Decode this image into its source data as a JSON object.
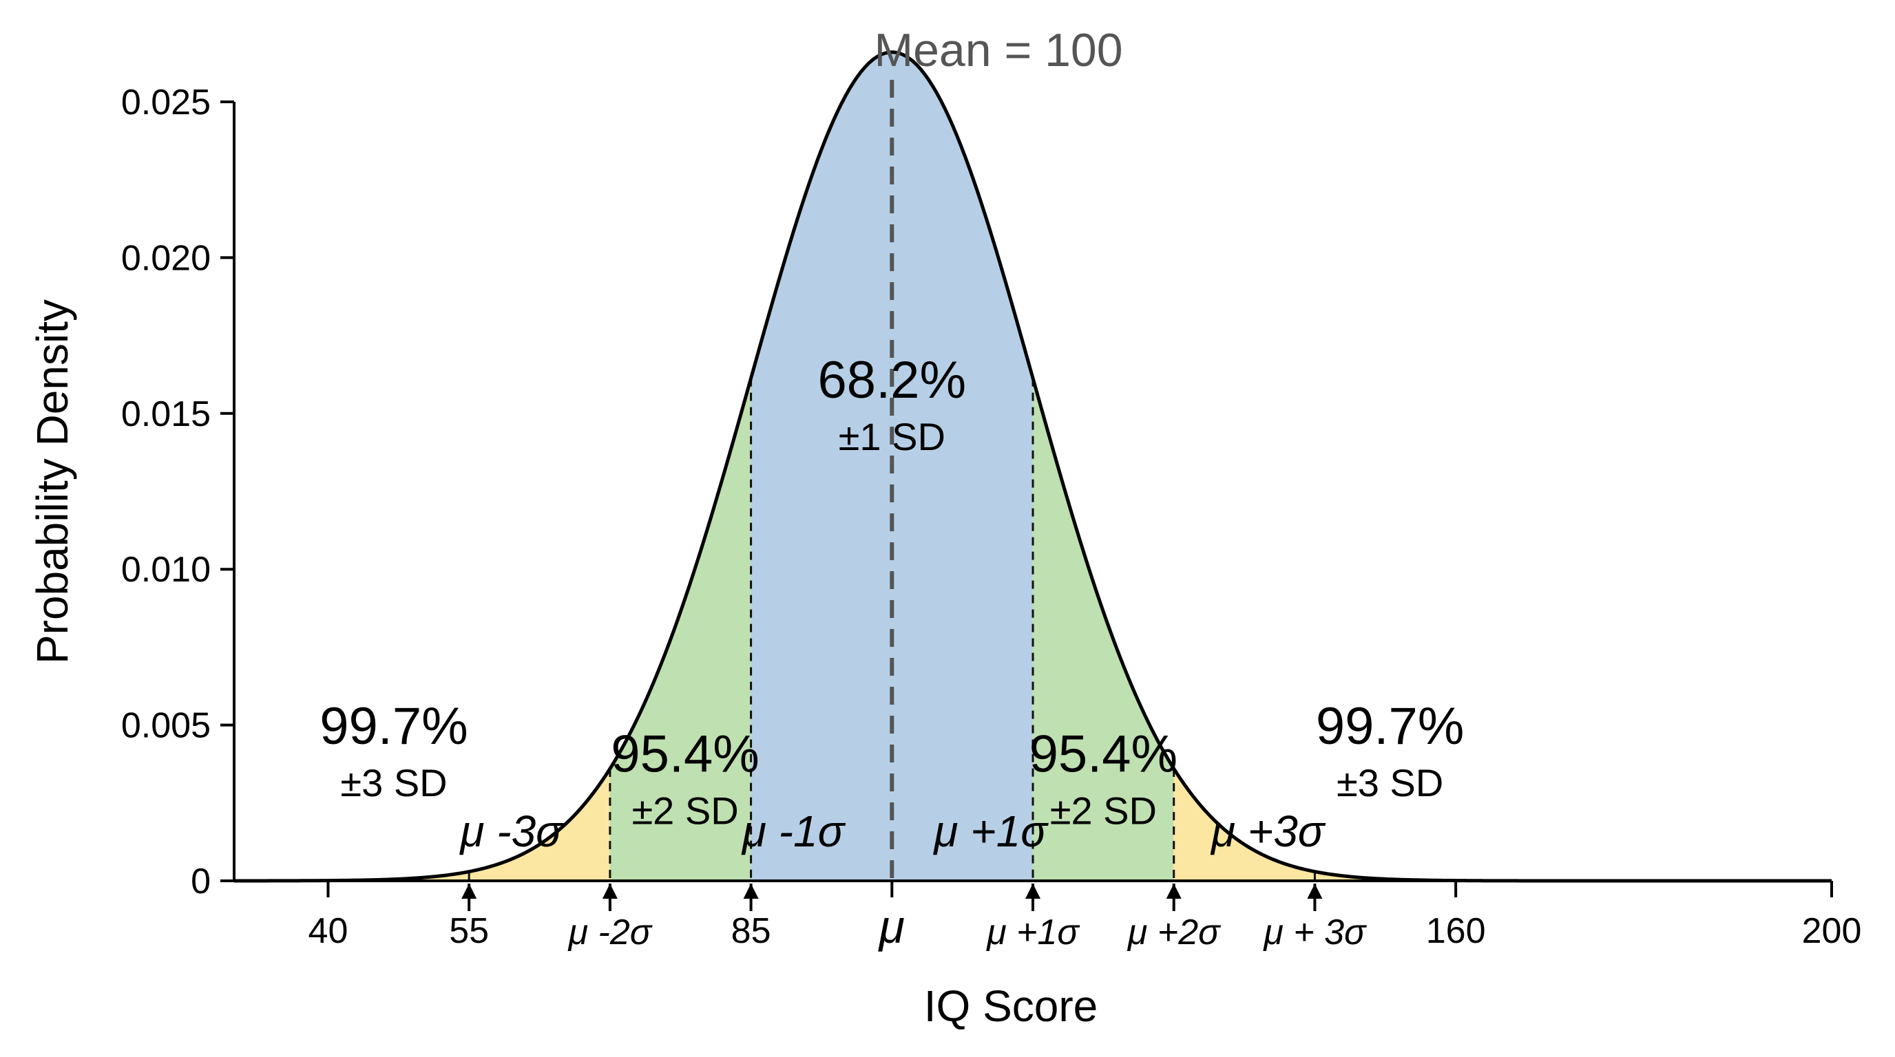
{
  "chart_data": {
    "type": "area",
    "title": "",
    "xlabel": "IQ Score",
    "ylabel": "Probability Density",
    "distribution": {
      "mean": 100,
      "sd": 15
    },
    "xlim": [
      30,
      200
    ],
    "ylim": [
      0,
      0.025
    ],
    "y_ticks": [
      {
        "value": 0,
        "label": "0"
      },
      {
        "value": 0.005,
        "label": "0.005"
      },
      {
        "value": 0.01,
        "label": "0.010"
      },
      {
        "value": 0.015,
        "label": "0.015"
      },
      {
        "value": 0.02,
        "label": "0.020"
      },
      {
        "value": 0.025,
        "label": "0.025"
      }
    ],
    "x_ticks": [
      {
        "value": 40,
        "label": "40",
        "arrow": false,
        "style": "plain"
      },
      {
        "value": 55,
        "label": "55",
        "arrow": true,
        "style": "plain"
      },
      {
        "value": 70,
        "label": "μ -2σ",
        "arrow": true,
        "style": "greek"
      },
      {
        "value": 85,
        "label": "85",
        "arrow": true,
        "style": "plain"
      },
      {
        "value": 100,
        "label": "μ",
        "arrow": false,
        "style": "mu"
      },
      {
        "value": 115,
        "label": "μ +1σ",
        "arrow": true,
        "style": "greek"
      },
      {
        "value": 130,
        "label": "μ +2σ",
        "arrow": true,
        "style": "greek"
      },
      {
        "value": 145,
        "label": "μ + 3σ",
        "arrow": true,
        "style": "greek"
      },
      {
        "value": 160,
        "label": "160",
        "arrow": false,
        "style": "plain"
      },
      {
        "value": 200,
        "label": "200",
        "arrow": false,
        "style": "plain"
      }
    ],
    "regions": [
      {
        "name": "±3 SD",
        "from": 55,
        "to": 70,
        "color": "#fbe6a2"
      },
      {
        "name": "±2 SD",
        "from": 70,
        "to": 85,
        "color": "#bfe0b0"
      },
      {
        "name": "±1 SD",
        "from": 85,
        "to": 115,
        "color": "#b6cfe6"
      },
      {
        "name": "±2 SD",
        "from": 115,
        "to": 130,
        "color": "#bfe0b0"
      },
      {
        "name": "±3 SD",
        "from": 130,
        "to": 145,
        "color": "#fbe6a2"
      }
    ],
    "tail_color": "#fbe6a2",
    "boundaries": [
      55,
      70,
      85,
      115,
      130,
      145
    ],
    "mean_line": {
      "value": 100,
      "label": "Mean = 100",
      "color": "#555555"
    },
    "annotations": [
      {
        "id": "left-99",
        "percent": "99.7%",
        "sd": "±3 SD",
        "x": 47,
        "y": 0.0044
      },
      {
        "id": "left-95",
        "percent": "95.4%",
        "sd": "±2 SD",
        "x": 78,
        "y": 0.0035
      },
      {
        "id": "center-68",
        "percent": "68.2%",
        "sd": "±1 SD",
        "x": 100,
        "y": 0.0155
      },
      {
        "id": "right-95",
        "percent": "95.4%",
        "sd": "±2 SD",
        "x": 122.5,
        "y": 0.0035
      },
      {
        "id": "right-99",
        "percent": "99.7%",
        "sd": "±3 SD",
        "x": 153,
        "y": 0.0044
      }
    ],
    "region_labels": [
      {
        "text": "μ -3σ",
        "x": 59.5,
        "y": 0.0011
      },
      {
        "text": "μ -1σ",
        "x": 89.5,
        "y": 0.0011
      },
      {
        "text": "μ +1σ",
        "x": 110.5,
        "y": 0.0011
      },
      {
        "text": "μ +3σ",
        "x": 140,
        "y": 0.0011
      }
    ],
    "grid": false,
    "legend": "none"
  }
}
